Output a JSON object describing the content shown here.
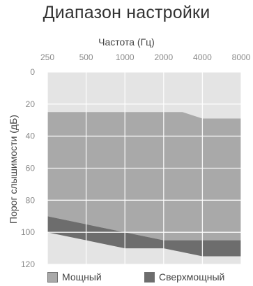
{
  "chart_data": {
    "type": "area",
    "title": "Диапазон настройки",
    "xlabel": "Частота (Гц)",
    "ylabel": "Порог слышимости (дБ)",
    "x_scale": "log2",
    "x_ticks": [
      "250",
      "500",
      "1000",
      "2000",
      "4000",
      "8000"
    ],
    "y_ticks": [
      "0",
      "20",
      "40",
      "60",
      "80",
      "100",
      "120"
    ],
    "ylim": [
      0,
      120
    ],
    "y_inverted": true,
    "x_axis_position": "top",
    "grid": true,
    "legend_position": "bottom",
    "colors": {
      "plot_background": "#e4e4e4",
      "powerful": "#a9a9a9",
      "superpowerful": "#6d6d6d",
      "grid": "#ffffff"
    },
    "series": [
      {
        "name": "Мощный",
        "color": "#a9a9a9",
        "upper": {
          "x": [
            250,
            2800,
            4000,
            8000
          ],
          "y": [
            25,
            25,
            29,
            29
          ]
        },
        "lower": {
          "x": [
            250,
            1000,
            2000,
            8000
          ],
          "y": [
            90,
            100,
            105,
            105
          ]
        }
      },
      {
        "name": "Сверхмощный",
        "color": "#6d6d6d",
        "upper": {
          "x": [
            250,
            1000,
            2000,
            8000
          ],
          "y": [
            90,
            100,
            105,
            105
          ]
        },
        "lower": {
          "x": [
            250,
            1000,
            2000,
            4000,
            8000
          ],
          "y": [
            100,
            110,
            110,
            115,
            115
          ]
        }
      }
    ]
  }
}
